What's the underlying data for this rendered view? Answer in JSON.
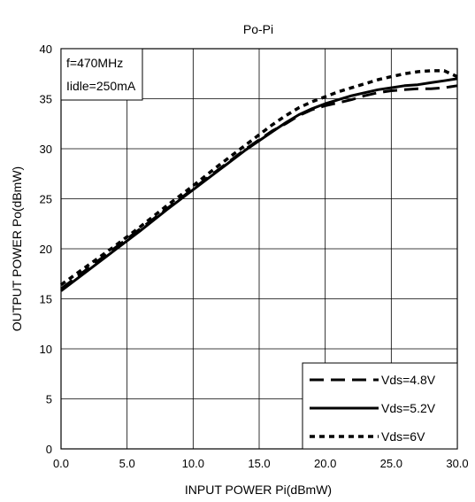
{
  "chart_data": {
    "type": "line",
    "title": "Po-Pi",
    "xlabel": "INPUT POWER Pi(dBmW)",
    "ylabel": "OUTPUT POWER Po(dBmW)",
    "xlim": [
      0,
      30
    ],
    "ylim": [
      0,
      40
    ],
    "x_ticks": [
      "0.0",
      "5.0",
      "10.0",
      "15.0",
      "20.0",
      "25.0",
      "30.0"
    ],
    "y_ticks": [
      "0",
      "5",
      "10",
      "15",
      "20",
      "25",
      "30",
      "35",
      "40"
    ],
    "grid": true,
    "annotation": [
      "f=470MHz",
      "Iidle=250mA"
    ],
    "legend_position": "bottom-right",
    "series": [
      {
        "name": "Vds=4.8V",
        "style": "long-dash",
        "x": [
          0,
          2,
          4,
          6,
          8,
          10,
          12,
          14,
          16,
          17,
          18,
          19,
          20,
          21,
          22,
          23,
          24,
          25,
          26,
          27,
          28,
          29,
          30
        ],
        "y": [
          16.0,
          18.0,
          20.0,
          22.0,
          24.0,
          26.0,
          28.0,
          30.0,
          31.8,
          32.5,
          33.3,
          33.9,
          34.3,
          34.6,
          34.9,
          35.3,
          35.6,
          35.8,
          35.9,
          36.0,
          36.0,
          36.1,
          36.3
        ]
      },
      {
        "name": "Vds=5.2V",
        "style": "solid",
        "x": [
          0,
          2,
          4,
          6,
          8,
          10,
          12,
          14,
          16,
          17,
          18,
          19,
          20,
          21,
          22,
          23,
          24,
          25,
          26,
          27,
          28,
          29,
          30
        ],
        "y": [
          15.8,
          17.8,
          19.8,
          21.8,
          23.9,
          25.9,
          27.9,
          29.9,
          31.7,
          32.6,
          33.4,
          34.0,
          34.5,
          34.9,
          35.3,
          35.6,
          35.9,
          36.1,
          36.3,
          36.4,
          36.6,
          36.8,
          37.0
        ]
      },
      {
        "name": "Vds=6V",
        "style": "short-dash",
        "x": [
          0,
          2,
          4,
          6,
          8,
          10,
          12,
          14,
          16,
          17,
          18,
          19,
          20,
          21,
          22,
          23,
          24,
          25,
          26,
          27,
          28,
          29,
          30
        ],
        "y": [
          16.4,
          18.3,
          20.2,
          22.2,
          24.3,
          26.3,
          28.4,
          30.4,
          32.4,
          33.3,
          34.1,
          34.7,
          35.2,
          35.7,
          36.1,
          36.5,
          36.9,
          37.2,
          37.5,
          37.7,
          37.8,
          37.8,
          37.2
        ]
      }
    ]
  }
}
